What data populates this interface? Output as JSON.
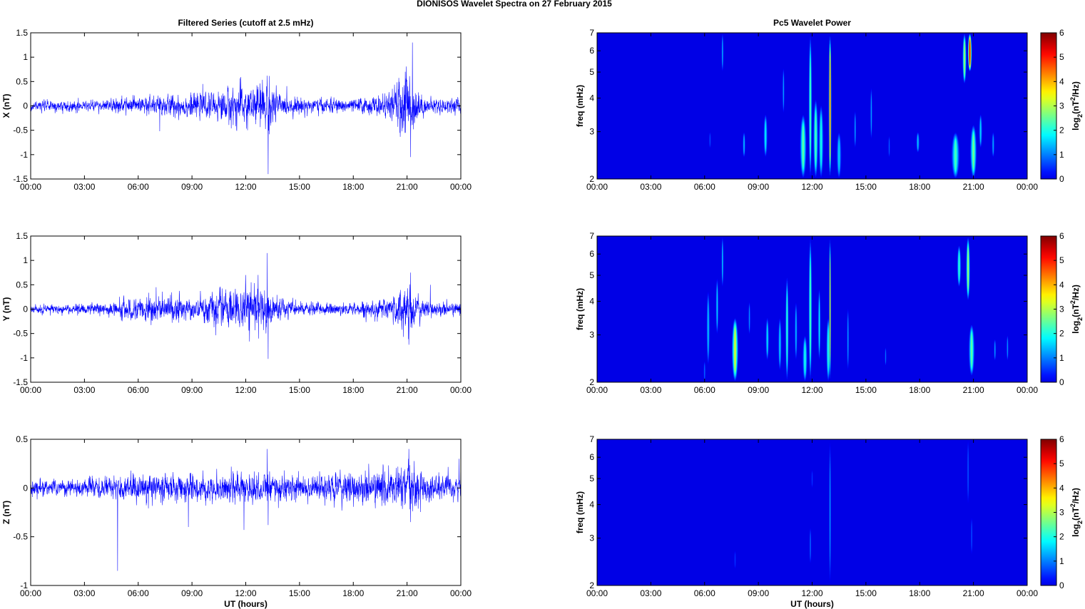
{
  "figure_title": "DIONISOS Wavelet Spectra on 27 February  2015",
  "chart_data": [
    {
      "type": "line",
      "title": "Filtered Series (cutoff at 2.5 mHz)",
      "ylabel": "X (nT)",
      "xlabel": "",
      "xlim": [
        0,
        24
      ],
      "ylim": [
        -1.5,
        1.5
      ],
      "x_ticks": [
        "00:00",
        "03:00",
        "06:00",
        "09:00",
        "12:00",
        "15:00",
        "18:00",
        "21:00",
        "00:00"
      ],
      "y_ticks": [
        "-1.5",
        "-1",
        "-0.5",
        "0",
        "0.5",
        "1",
        "1.5"
      ],
      "y_tick_values": [
        -1.5,
        -1,
        -0.5,
        0,
        0.5,
        1,
        1.5
      ],
      "color": "#0000ff",
      "base_amplitude": 0.05,
      "envelope": [
        [
          0,
          0.05
        ],
        [
          2,
          0.06
        ],
        [
          4,
          0.06
        ],
        [
          6,
          0.1
        ],
        [
          8,
          0.12
        ],
        [
          10,
          0.12
        ],
        [
          11.5,
          0.22
        ],
        [
          12.5,
          0.2
        ],
        [
          13.2,
          0.3
        ],
        [
          14,
          0.1
        ],
        [
          16,
          0.08
        ],
        [
          18,
          0.07
        ],
        [
          20,
          0.12
        ],
        [
          21,
          0.4
        ],
        [
          21.5,
          0.2
        ],
        [
          22,
          0.08
        ],
        [
          24,
          0.08
        ]
      ],
      "spikes": [
        [
          13.25,
          -1.4
        ],
        [
          13.2,
          0.62
        ],
        [
          21.3,
          1.3
        ],
        [
          21.2,
          -1.05
        ],
        [
          7.2,
          -0.52
        ],
        [
          12.1,
          -0.5
        ],
        [
          20.9,
          0.7
        ],
        [
          9.6,
          0.45
        ]
      ]
    },
    {
      "type": "line",
      "title": "",
      "ylabel": "Y (nT)",
      "xlabel": "",
      "xlim": [
        0,
        24
      ],
      "ylim": [
        -1.5,
        1.5
      ],
      "x_ticks": [
        "00:00",
        "03:00",
        "06:00",
        "09:00",
        "12:00",
        "15:00",
        "18:00",
        "21:00",
        "00:00"
      ],
      "y_ticks": [
        "-1.5",
        "-1",
        "-0.5",
        "0",
        "0.5",
        "1",
        "1.5"
      ],
      "y_tick_values": [
        -1.5,
        -1,
        -0.5,
        0,
        0.5,
        1,
        1.5
      ],
      "color": "#0000ff",
      "base_amplitude": 0.05,
      "envelope": [
        [
          0,
          0.05
        ],
        [
          2,
          0.05
        ],
        [
          4,
          0.06
        ],
        [
          6,
          0.12
        ],
        [
          7,
          0.14
        ],
        [
          9,
          0.1
        ],
        [
          11,
          0.2
        ],
        [
          12.5,
          0.25
        ],
        [
          13.5,
          0.15
        ],
        [
          15,
          0.07
        ],
        [
          18,
          0.06
        ],
        [
          20,
          0.12
        ],
        [
          21,
          0.3
        ],
        [
          21.5,
          0.15
        ],
        [
          22,
          0.08
        ],
        [
          24,
          0.07
        ]
      ],
      "spikes": [
        [
          13.2,
          1.15
        ],
        [
          13.25,
          -1.02
        ],
        [
          21.1,
          -0.73
        ],
        [
          21.2,
          0.75
        ],
        [
          22.3,
          0.5
        ],
        [
          12.3,
          0.55
        ],
        [
          7.0,
          0.45
        ]
      ]
    },
    {
      "type": "line",
      "title": "",
      "ylabel": "Z (nT)",
      "xlabel": "UT (hours)",
      "xlim": [
        0,
        24
      ],
      "ylim": [
        -1,
        0.5
      ],
      "x_ticks": [
        "00:00",
        "03:00",
        "06:00",
        "09:00",
        "12:00",
        "15:00",
        "18:00",
        "21:00",
        "00:00"
      ],
      "y_ticks": [
        "-1",
        "-0.5",
        "0",
        "0.5"
      ],
      "y_tick_values": [
        -1,
        -0.5,
        0,
        0.5
      ],
      "color": "#0000ff",
      "base_amplitude": 0.04,
      "envelope": [
        [
          0,
          0.04
        ],
        [
          3,
          0.05
        ],
        [
          6,
          0.07
        ],
        [
          9,
          0.07
        ],
        [
          12,
          0.09
        ],
        [
          15,
          0.07
        ],
        [
          18,
          0.08
        ],
        [
          20,
          0.1
        ],
        [
          21,
          0.14
        ],
        [
          22,
          0.08
        ],
        [
          24,
          0.06
        ]
      ],
      "spikes": [
        [
          4.85,
          -0.85
        ],
        [
          13.2,
          0.4
        ],
        [
          11.9,
          -0.43
        ],
        [
          21.1,
          0.4
        ],
        [
          21.2,
          -0.35
        ],
        [
          8.8,
          -0.4
        ],
        [
          13.25,
          -0.38
        ],
        [
          23.9,
          0.3
        ]
      ]
    },
    {
      "type": "heatmap",
      "title": "Pc5 Wavelet Power",
      "ylabel": "freq (mHz)",
      "xlabel": "",
      "y_scale": "log",
      "xlim": [
        0,
        24
      ],
      "ylim": [
        2,
        7
      ],
      "x_ticks": [
        "00:00",
        "03:00",
        "06:00",
        "09:00",
        "12:00",
        "15:00",
        "18:00",
        "21:00",
        "00:00"
      ],
      "y_ticks": [
        "2",
        "3",
        "4",
        "5",
        "6",
        "7"
      ],
      "y_tick_values": [
        2,
        3,
        4,
        5,
        6,
        7
      ],
      "colorbar_label": "log2(nT2/Hz)",
      "colorbar_ticks": [
        "0",
        "1",
        "2",
        "3",
        "4",
        "5",
        "6"
      ],
      "clim": [
        0,
        6
      ],
      "blobs": [
        [
          7.0,
          5.0,
          7.0,
          0.06,
          1.4
        ],
        [
          8.2,
          2.4,
          3.0,
          0.08,
          1.5
        ],
        [
          9.4,
          2.4,
          3.5,
          0.12,
          1.8
        ],
        [
          10.4,
          3.5,
          5.2,
          0.06,
          1.3
        ],
        [
          11.5,
          2.0,
          3.5,
          0.2,
          2.5
        ],
        [
          11.9,
          2.0,
          7.0,
          0.1,
          2.5
        ],
        [
          12.2,
          2.0,
          4.0,
          0.15,
          2.4
        ],
        [
          12.5,
          2.0,
          3.8,
          0.15,
          2.0
        ],
        [
          13.0,
          2.0,
          7.0,
          0.08,
          5.0
        ],
        [
          13.5,
          2.0,
          3.0,
          0.15,
          1.6
        ],
        [
          14.4,
          2.6,
          3.6,
          0.06,
          1.3
        ],
        [
          15.3,
          2.8,
          4.4,
          0.06,
          1.3
        ],
        [
          17.9,
          2.5,
          3.0,
          0.1,
          1.5
        ],
        [
          20.0,
          2.0,
          3.0,
          0.25,
          2.3
        ],
        [
          20.5,
          4.5,
          7.0,
          0.12,
          3.0
        ],
        [
          20.8,
          5.0,
          7.0,
          0.12,
          5.5
        ],
        [
          21.0,
          2.0,
          3.2,
          0.2,
          2.6
        ],
        [
          21.4,
          2.6,
          3.5,
          0.1,
          1.6
        ],
        [
          22.1,
          2.4,
          3.0,
          0.08,
          1.3
        ],
        [
          16.3,
          2.4,
          2.9,
          0.05,
          0.9
        ],
        [
          6.3,
          2.6,
          3.0,
          0.05,
          0.8
        ]
      ]
    },
    {
      "type": "heatmap",
      "title": "",
      "ylabel": "freq (mHz)",
      "xlabel": "",
      "y_scale": "log",
      "xlim": [
        0,
        24
      ],
      "ylim": [
        2,
        7
      ],
      "x_ticks": [
        "00:00",
        "03:00",
        "06:00",
        "09:00",
        "12:00",
        "15:00",
        "18:00",
        "21:00",
        "00:00"
      ],
      "y_ticks": [
        "2",
        "3",
        "4",
        "5",
        "6",
        "7"
      ],
      "y_tick_values": [
        2,
        3,
        4,
        5,
        6,
        7
      ],
      "colorbar_label": "log2(nT2/Hz)",
      "colorbar_ticks": [
        "0",
        "1",
        "2",
        "3",
        "4",
        "5",
        "6"
      ],
      "clim": [
        0,
        6
      ],
      "blobs": [
        [
          6.2,
          2.3,
          4.4,
          0.1,
          1.5
        ],
        [
          6.7,
          3.0,
          4.9,
          0.08,
          1.6
        ],
        [
          7.0,
          4.5,
          7.0,
          0.06,
          1.6
        ],
        [
          7.7,
          2.0,
          3.5,
          0.2,
          3.3
        ],
        [
          8.5,
          3.0,
          4.0,
          0.06,
          1.2
        ],
        [
          9.5,
          2.4,
          3.5,
          0.1,
          1.7
        ],
        [
          10.2,
          2.2,
          3.5,
          0.1,
          1.6
        ],
        [
          10.6,
          2.0,
          5.0,
          0.1,
          2.2
        ],
        [
          11.1,
          2.4,
          4.0,
          0.08,
          1.5
        ],
        [
          11.6,
          2.0,
          3.0,
          0.15,
          2.0
        ],
        [
          11.9,
          2.0,
          7.0,
          0.1,
          2.5
        ],
        [
          12.4,
          2.4,
          4.5,
          0.08,
          1.8
        ],
        [
          12.9,
          2.0,
          3.5,
          0.12,
          2.2
        ],
        [
          13.0,
          2.0,
          7.0,
          0.05,
          4.2
        ],
        [
          14.0,
          2.2,
          3.8,
          0.06,
          1.3
        ],
        [
          16.1,
          2.3,
          2.7,
          0.05,
          1.0
        ],
        [
          20.2,
          4.5,
          6.5,
          0.12,
          2.2
        ],
        [
          20.7,
          4.0,
          7.0,
          0.12,
          3.0
        ],
        [
          20.9,
          2.1,
          3.3,
          0.18,
          2.5
        ],
        [
          22.2,
          2.4,
          2.9,
          0.06,
          1.3
        ],
        [
          22.9,
          2.4,
          3.0,
          0.06,
          1.2
        ],
        [
          6.0,
          2.0,
          2.4,
          0.06,
          0.9
        ]
      ]
    },
    {
      "type": "heatmap",
      "title": "",
      "ylabel": "freq (mHz)",
      "xlabel": "UT (hours)",
      "y_scale": "log",
      "xlim": [
        0,
        24
      ],
      "ylim": [
        2,
        7
      ],
      "x_ticks": [
        "00:00",
        "03:00",
        "06:00",
        "09:00",
        "12:00",
        "15:00",
        "18:00",
        "21:00",
        "00:00"
      ],
      "y_ticks": [
        "2",
        "3",
        "4",
        "5",
        "6",
        "7"
      ],
      "y_tick_values": [
        2,
        3,
        4,
        5,
        6,
        7
      ],
      "colorbar_label": "log2(nT2/Hz)",
      "colorbar_ticks": [
        "0",
        "1",
        "2",
        "3",
        "4",
        "5",
        "6"
      ],
      "clim": [
        0,
        6
      ],
      "blobs": [
        [
          13.0,
          2.0,
          7.0,
          0.05,
          1.4
        ],
        [
          11.9,
          2.4,
          3.3,
          0.05,
          1.0
        ],
        [
          20.7,
          4.0,
          7.0,
          0.05,
          0.9
        ],
        [
          20.9,
          2.6,
          3.6,
          0.05,
          0.8
        ],
        [
          7.7,
          2.3,
          2.7,
          0.05,
          0.6
        ],
        [
          12.0,
          4.6,
          5.4,
          0.04,
          0.6
        ]
      ]
    }
  ]
}
